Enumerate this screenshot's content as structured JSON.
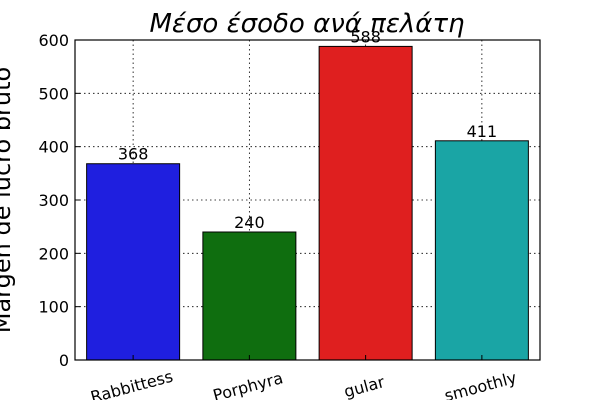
{
  "chart_data": {
    "type": "bar",
    "title": "Μέσο έσοδο ανά πελάτη",
    "xlabel": "",
    "ylabel": "Margen de lucro bruto",
    "categories": [
      "Rabbittess",
      "Porphyra",
      "gular",
      "smoothly"
    ],
    "values": [
      368,
      240,
      588,
      411
    ],
    "colors": [
      "#1f1fdf",
      "#0f6e0f",
      "#df1f1f",
      "#1aa5a5"
    ],
    "ylim": [
      0,
      600
    ],
    "yticks": [
      0,
      100,
      200,
      300,
      400,
      500,
      600
    ],
    "grid": true,
    "legend": "none"
  }
}
